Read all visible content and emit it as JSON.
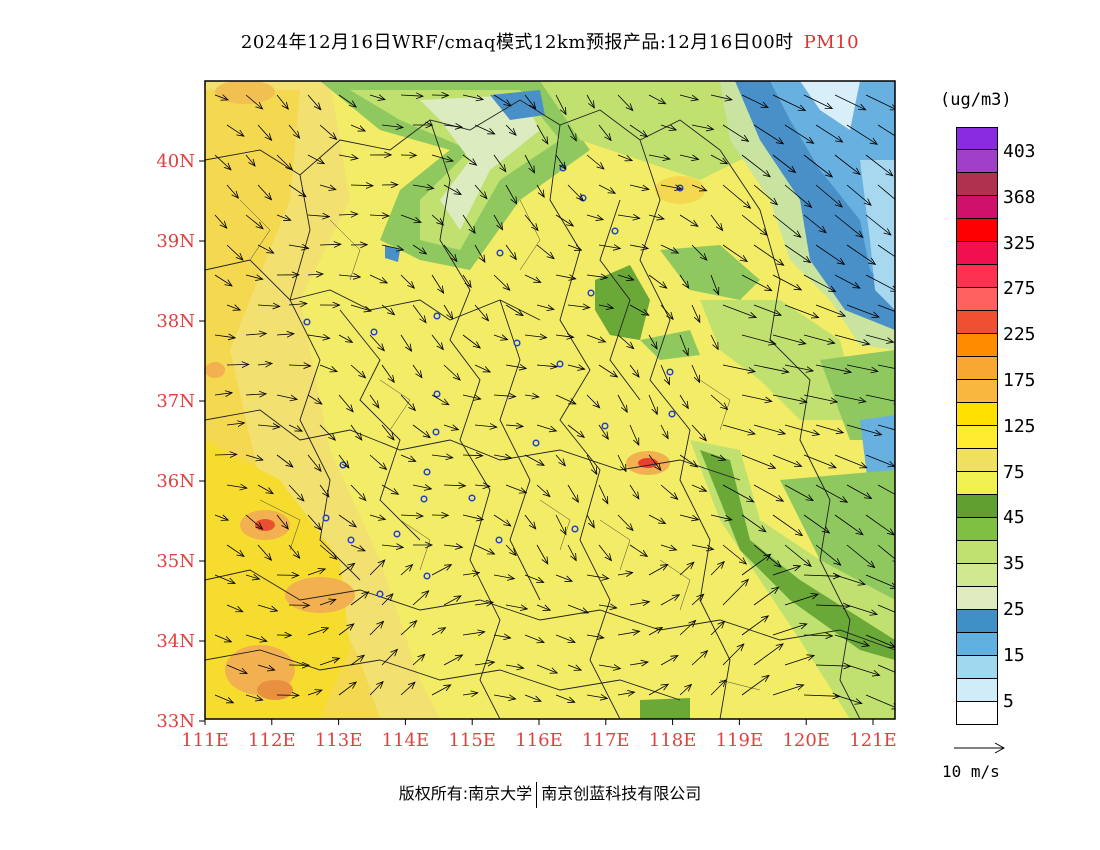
{
  "title": {
    "text": "2024年12月16日WRF/cmaq模式12km预报产品:12月16日00时",
    "pollutant": "PM10"
  },
  "map": {
    "lat_labels": [
      "40N",
      "39N",
      "38N",
      "37N",
      "36N",
      "35N",
      "34N",
      "33N"
    ],
    "lon_labels": [
      "111E",
      "112E",
      "113E",
      "114E",
      "115E",
      "116E",
      "117E",
      "118E",
      "119E",
      "120E",
      "121E"
    ],
    "label_color": "#e04040"
  },
  "legend": {
    "unit": "(ug/m3)",
    "labels": [
      "403",
      "368",
      "325",
      "275",
      "225",
      "175",
      "125",
      "75",
      "45",
      "35",
      "25",
      "15",
      "5"
    ],
    "colors": [
      "#8a2be2",
      "#a040c8",
      "#b03050",
      "#d0106a",
      "#ff0000",
      "#f01050",
      "#ff3050",
      "#ff6060",
      "#f05030",
      "#ff8c00",
      "#f8a830",
      "#f8b840",
      "#ffe000",
      "#ffec30",
      "#f0e060",
      "#f0f050",
      "#60a030",
      "#80c040",
      "#c0e070",
      "#d0e890",
      "#e0ecc0",
      "#4090c8",
      "#60b0e0",
      "#a0d8f0",
      "#d0ecf8",
      "#ffffff"
    ]
  },
  "wind_reference": {
    "label": "10 m/s"
  },
  "footer": {
    "left": "版权所有:南京大学",
    "right": "南京创蓝科技有限公司"
  }
}
